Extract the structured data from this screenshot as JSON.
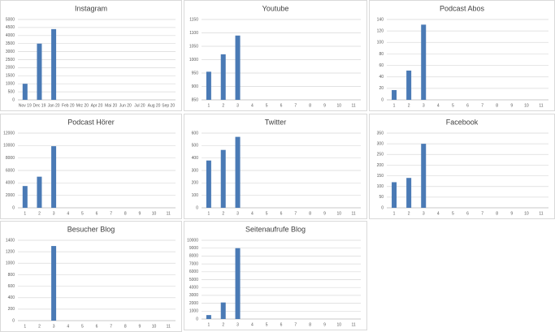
{
  "chart_data": [
    {
      "type": "bar",
      "title": "Instagram",
      "color": "#4a7ab5",
      "grid": true,
      "categories": [
        "Nov 19",
        "Dec 19",
        "Jan 20",
        "Feb 20",
        "Mrz 20",
        "Apr 20",
        "Mai 20",
        "Jun 20",
        "Jul 20",
        "Aug 20",
        "Sep 20"
      ],
      "values": [
        1000,
        3500,
        4400,
        null,
        null,
        null,
        null,
        null,
        null,
        null,
        null
      ],
      "ylim": [
        0,
        5000
      ],
      "yticks": [
        0,
        500,
        1000,
        1500,
        2000,
        2500,
        3000,
        3500,
        4000,
        4500,
        5000
      ]
    },
    {
      "type": "bar",
      "title": "Youtube",
      "color": "#4a7ab5",
      "grid": true,
      "categories": [
        "1",
        "2",
        "3",
        "4",
        "5",
        "6",
        "7",
        "8",
        "9",
        "10",
        "11"
      ],
      "values": [
        955,
        1020,
        1090,
        null,
        null,
        null,
        null,
        null,
        null,
        null,
        null
      ],
      "ylim": [
        850,
        1150
      ],
      "yticks": [
        850,
        900,
        950,
        1000,
        1050,
        1100,
        1150
      ]
    },
    {
      "type": "bar",
      "title": "Podcast Abos",
      "color": "#4a7ab5",
      "grid": true,
      "categories": [
        "1",
        "2",
        "3",
        "4",
        "5",
        "6",
        "7",
        "8",
        "9",
        "10",
        "11"
      ],
      "values": [
        17,
        51,
        131,
        null,
        null,
        null,
        null,
        null,
        null,
        null,
        null
      ],
      "ylim": [
        0,
        140
      ],
      "yticks": [
        0,
        20,
        40,
        60,
        80,
        100,
        120,
        140
      ]
    },
    {
      "type": "bar",
      "title": "Podcast Hörer",
      "color": "#4a7ab5",
      "grid": true,
      "categories": [
        "1",
        "2",
        "3",
        "4",
        "5",
        "6",
        "7",
        "8",
        "9",
        "10",
        "11"
      ],
      "values": [
        3500,
        5000,
        9900,
        null,
        null,
        null,
        null,
        null,
        null,
        null,
        null
      ],
      "ylim": [
        0,
        12000
      ],
      "yticks": [
        0,
        2000,
        4000,
        6000,
        8000,
        10000,
        12000
      ]
    },
    {
      "type": "bar",
      "title": "Twitter",
      "color": "#4a7ab5",
      "grid": true,
      "categories": [
        "1",
        "2",
        "3",
        "4",
        "5",
        "6",
        "7",
        "8",
        "9",
        "10",
        "11"
      ],
      "values": [
        380,
        465,
        570,
        null,
        null,
        null,
        null,
        null,
        null,
        null,
        null
      ],
      "ylim": [
        0,
        600
      ],
      "yticks": [
        0,
        100,
        200,
        300,
        400,
        500,
        600
      ]
    },
    {
      "type": "bar",
      "title": "Facebook",
      "color": "#4a7ab5",
      "grid": true,
      "categories": [
        "1",
        "2",
        "3",
        "4",
        "5",
        "6",
        "7",
        "8",
        "9",
        "10",
        "11"
      ],
      "values": [
        120,
        140,
        300,
        null,
        null,
        null,
        null,
        null,
        null,
        null,
        null
      ],
      "ylim": [
        0,
        350
      ],
      "yticks": [
        0,
        50,
        100,
        150,
        200,
        250,
        300,
        350
      ]
    },
    {
      "type": "bar",
      "title": "Besucher Blog",
      "color": "#4a7ab5",
      "grid": true,
      "categories": [
        "1",
        "2",
        "3",
        "4",
        "5",
        "6",
        "7",
        "8",
        "9",
        "10",
        "11"
      ],
      "values": [
        null,
        null,
        1300,
        null,
        null,
        null,
        null,
        null,
        null,
        null,
        null
      ],
      "ylim": [
        0,
        1400
      ],
      "yticks": [
        0,
        200,
        400,
        600,
        800,
        1000,
        1200,
        1400
      ]
    },
    {
      "type": "bar",
      "title": "Seitenaufrufe Blog",
      "color": "#4a7ab5",
      "grid": true,
      "categories": [
        "1",
        "2",
        "3",
        "4",
        "5",
        "6",
        "7",
        "8",
        "9",
        "10",
        "11"
      ],
      "values": [
        500,
        2100,
        9000,
        null,
        null,
        null,
        null,
        null,
        null,
        null,
        null
      ],
      "ylim": [
        0,
        10000
      ],
      "yticks": [
        0,
        1000,
        2000,
        3000,
        4000,
        5000,
        6000,
        7000,
        8000,
        9000,
        10000
      ]
    }
  ]
}
